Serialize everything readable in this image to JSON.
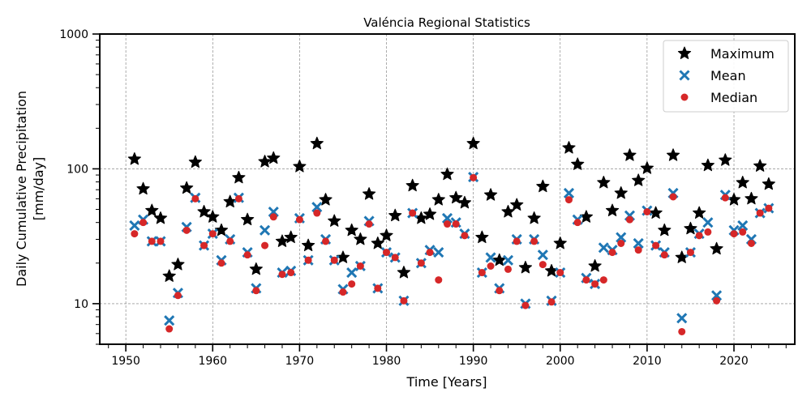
{
  "chart_data": {
    "type": "scatter",
    "title": "Valéncia Regional Statistics",
    "xlabel": "Time [Years]",
    "ylabel_line1": "Daily Cumulative Precipitation",
    "ylabel_line2": "[mm/day]",
    "xlim": [
      1947,
      2027
    ],
    "ylim": [
      5,
      1000
    ],
    "yscale": "log",
    "grid": true,
    "legend_position": "top-right",
    "x_ticks": [
      1950,
      1960,
      1970,
      1980,
      1990,
      2000,
      2010,
      2020
    ],
    "y_ticks": [
      10,
      100,
      1000
    ],
    "y_tick_labels": [
      "10",
      "100",
      "1000"
    ],
    "years": [
      1951,
      1952,
      1953,
      1954,
      1955,
      1956,
      1957,
      1958,
      1959,
      1960,
      1961,
      1962,
      1963,
      1964,
      1965,
      1966,
      1967,
      1968,
      1969,
      1970,
      1971,
      1972,
      1973,
      1974,
      1975,
      1976,
      1977,
      1978,
      1979,
      1980,
      1981,
      1982,
      1983,
      1984,
      1985,
      1986,
      1987,
      1988,
      1989,
      1990,
      1991,
      1992,
      1993,
      1994,
      1995,
      1996,
      1997,
      1998,
      1999,
      2000,
      2001,
      2002,
      2003,
      2004,
      2005,
      2006,
      2007,
      2008,
      2009,
      2010,
      2011,
      2012,
      2013,
      2014,
      2015,
      2016,
      2017,
      2018,
      2019,
      2020,
      2021,
      2022,
      2023,
      2024
    ],
    "series": [
      {
        "name": "Maximum",
        "marker": "star",
        "color": "#000000",
        "values": [
          118,
          71,
          49,
          43,
          16,
          19.5,
          72,
          112,
          48,
          44,
          35,
          57,
          86,
          42,
          18,
          113,
          120,
          29,
          31,
          104,
          27,
          154,
          59,
          41,
          22,
          35,
          30,
          65,
          28,
          32,
          45,
          17,
          75,
          43,
          46,
          59,
          91,
          61,
          56,
          154,
          31,
          64,
          21,
          48,
          54,
          18.5,
          43,
          74,
          17.5,
          28,
          143,
          108,
          44,
          19,
          79,
          49,
          66,
          126,
          82,
          101,
          47,
          35,
          126,
          22,
          36,
          47,
          106,
          25.5,
          116,
          59,
          79,
          60,
          105,
          77
        ]
      },
      {
        "name": "Mean",
        "marker": "x",
        "color": "#1f77b4",
        "values": [
          38,
          42,
          29,
          29,
          7.5,
          12,
          37,
          61,
          27,
          33,
          21,
          30,
          61,
          24,
          13,
          35,
          48,
          17,
          17.5,
          43,
          21,
          52,
          30,
          21,
          12.8,
          17,
          19,
          41,
          13,
          24,
          22,
          10.5,
          47,
          20,
          25,
          24,
          43,
          40,
          33,
          87,
          17,
          22,
          13,
          21,
          30,
          10,
          30,
          23,
          10.5,
          17,
          66,
          42,
          15.5,
          14,
          26,
          25,
          31,
          45,
          28,
          49,
          27,
          24,
          66,
          7.8,
          24,
          33,
          40,
          11.5,
          64,
          35,
          38,
          30,
          47,
          51
        ]
      },
      {
        "name": "Median",
        "marker": "circle",
        "color": "#d62728",
        "values": [
          33,
          40,
          29,
          29,
          6.5,
          11.5,
          35,
          60,
          27,
          33,
          20,
          29,
          60,
          23,
          12.5,
          27,
          44,
          16.5,
          17,
          42,
          21,
          47,
          29,
          21,
          12.2,
          14,
          19,
          39,
          13,
          24,
          22,
          10.5,
          47,
          20,
          24,
          15,
          39,
          39,
          32,
          86,
          17,
          19,
          12.5,
          18,
          29,
          9.7,
          29,
          19.5,
          10.3,
          17,
          59,
          40,
          15,
          14,
          15,
          24,
          28,
          42,
          25,
          48,
          27,
          23,
          62,
          6.2,
          24,
          32,
          34,
          10.5,
          61,
          33,
          34,
          28,
          47,
          51
        ]
      }
    ]
  }
}
